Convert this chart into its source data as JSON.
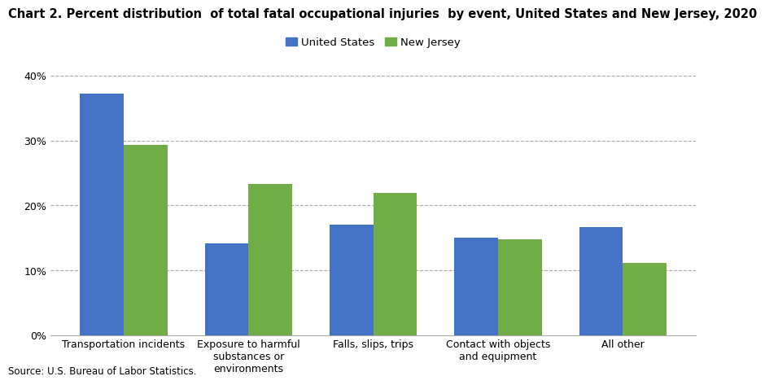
{
  "title": "Chart 2. Percent distribution  of total fatal occupational injuries  by event, United States and New Jersey, 2020",
  "categories": [
    "Transportation incidents",
    "Exposure to harmful\nsubstances or\nenvironments",
    "Falls, slips, trips",
    "Contact with objects\nand equipment",
    "All other"
  ],
  "us_values": [
    37.3,
    14.2,
    17.0,
    15.0,
    16.7
  ],
  "nj_values": [
    29.3,
    23.3,
    21.9,
    14.8,
    11.1
  ],
  "us_color": "#4472C4",
  "nj_color": "#70AD47",
  "us_label": "United States",
  "nj_label": "New Jersey",
  "ylim": [
    0,
    42
  ],
  "yticks": [
    0,
    10,
    20,
    30,
    40
  ],
  "ytick_labels": [
    "0%",
    "10%",
    "20%",
    "30%",
    "40%"
  ],
  "source": "Source: U.S. Bureau of Labor Statistics.",
  "title_fontsize": 10.5,
  "legend_fontsize": 9.5,
  "tick_fontsize": 9,
  "bar_width": 0.35,
  "grid_color": "#AAAAAA",
  "background_color": "#FFFFFF"
}
